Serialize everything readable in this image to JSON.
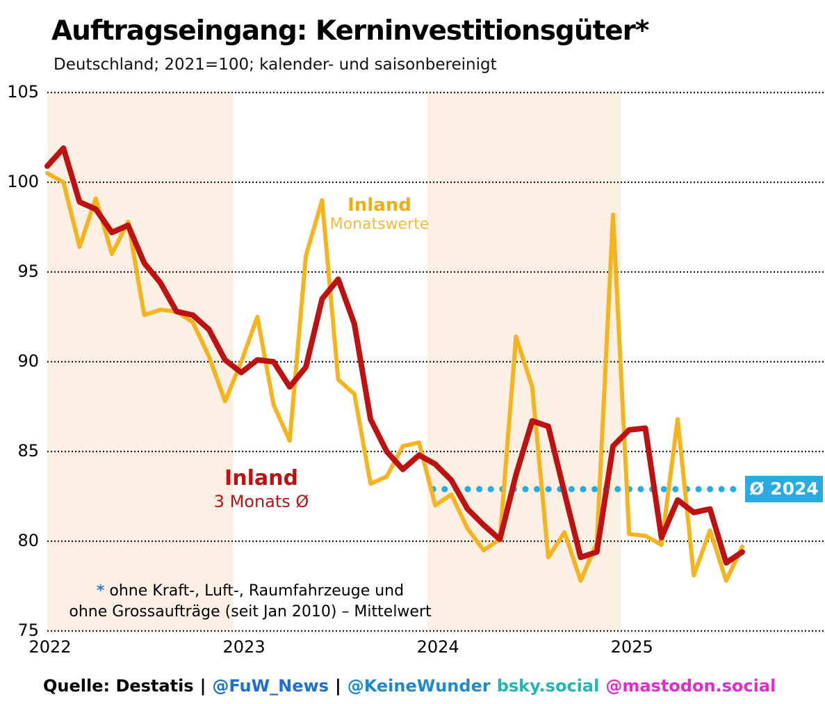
{
  "header": {
    "title": "Auftragseingang: Kerninvestitionsgüter*",
    "subtitle": "Deutschland; 2021=100; kalender- und saisonbereinigt"
  },
  "chart_data": {
    "type": "line",
    "x_unit": "month",
    "x_start": "2022-01",
    "x_end": "2025-08",
    "x_tick_labels": [
      "2022",
      "2023",
      "2024",
      "2025"
    ],
    "y_ticks": [
      105,
      100,
      95,
      90,
      85,
      80,
      75
    ],
    "ylim": [
      75,
      105
    ],
    "grid": "dotted horizontal black",
    "legend_position": "direct labels on chart",
    "shaded_years": [
      "2022",
      "2024"
    ],
    "band_color": "#FCF0E5",
    "series": [
      {
        "name": "Inland Monatswerte",
        "color": "#F5B41E",
        "width": 6,
        "values": [
          100.5,
          100.0,
          96.4,
          99.1,
          96.0,
          97.8,
          92.6,
          92.9,
          92.8,
          92.2,
          90.3,
          87.8,
          90.0,
          92.5,
          87.6,
          85.6,
          95.9,
          99.0,
          89.0,
          88.2,
          83.2,
          83.6,
          85.3,
          85.5,
          82.0,
          82.6,
          80.7,
          79.5,
          80.1,
          91.4,
          88.6,
          79.1,
          80.5,
          77.8,
          79.9,
          98.2,
          80.4,
          80.3,
          79.8,
          86.8,
          78.1,
          80.6,
          77.8,
          79.7
        ]
      },
      {
        "name": "Inland 3 Monats Ø",
        "color": "#BE1111",
        "width": 8,
        "values": [
          100.9,
          101.9,
          98.9,
          98.5,
          97.2,
          97.6,
          95.5,
          94.4,
          92.8,
          92.6,
          91.8,
          90.1,
          89.4,
          90.1,
          90.0,
          88.6,
          89.7,
          93.5,
          94.6,
          92.1,
          86.8,
          85.0,
          84.0,
          84.8,
          84.3,
          83.4,
          81.8,
          80.9,
          80.1,
          83.7,
          86.7,
          86.4,
          82.7,
          79.1,
          79.4,
          85.3,
          86.2,
          86.3,
          80.2,
          82.3,
          81.6,
          81.8,
          78.8,
          79.4
        ]
      }
    ],
    "average_line": {
      "label": "Ø 2024",
      "value": 82.9,
      "color": "#29ABE2",
      "start_month_index": 24,
      "style": "dotted"
    }
  },
  "annotations": {
    "monthly_label": {
      "line1": "Inland",
      "line2": "Monatswerte"
    },
    "avg3_label": {
      "line1": "Inland",
      "line2": "3 Monats Ø"
    }
  },
  "footnote": {
    "asterisk": "*",
    "asterisk_color": "#3C78C0",
    "line1": "ohne Kraft-, Luft-, Raumfahrzeuge und",
    "line2": "ohne Grossaufträge (seit Jan 2010) – Mittelwert"
  },
  "source": {
    "segments": [
      {
        "text": "Quelle: Destatis",
        "color": "#000000"
      },
      {
        "text": "|",
        "color": "#000000"
      },
      {
        "text": "@FuW_News",
        "color": "#1D6FD1"
      },
      {
        "text": "|",
        "color": "#000000"
      },
      {
        "text": "@KeineWunder",
        "color": "#1E89CB"
      },
      {
        "text": "bsky.social",
        "color": "#23B5B5"
      },
      {
        "text": "@mastodon.social",
        "color": "#E02BD0"
      }
    ]
  }
}
